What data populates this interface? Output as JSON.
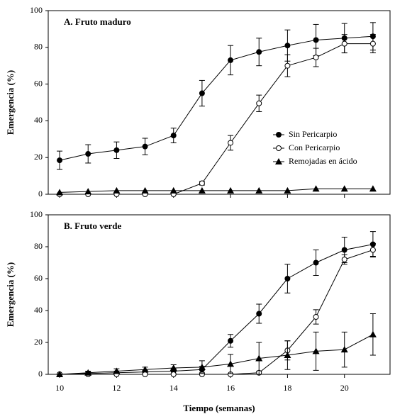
{
  "chart_data": [
    {
      "type": "line",
      "title": "A.  Fruto maduro",
      "y_label": "Emergencia (%)",
      "x": [
        10,
        11,
        12,
        13,
        14,
        15,
        16,
        17,
        18,
        19,
        20,
        21
      ],
      "xlim": [
        9.6,
        21.6
      ],
      "xticks": [
        10,
        12,
        14,
        16,
        18,
        20
      ],
      "show_xtick_labels": false,
      "ylim": [
        0,
        100
      ],
      "yticks": [
        0,
        20,
        40,
        60,
        80,
        100
      ],
      "legend": "right",
      "series": [
        {
          "name": "Sin Pericarpio",
          "color": "#000000",
          "marker": "circle-filled",
          "values": [
            18.5,
            22,
            24,
            26,
            32,
            55,
            73,
            77.5,
            81,
            84,
            85,
            86
          ],
          "errors": [
            5,
            5,
            4.5,
            4.5,
            4,
            7,
            8,
            7.5,
            8.5,
            8.5,
            8,
            7.5
          ]
        },
        {
          "name": "Con Pericarpio",
          "color": "#000000",
          "marker": "circle-open",
          "values": [
            0,
            0,
            0,
            0,
            0,
            6,
            28,
            49.5,
            70,
            74.5,
            82,
            82
          ],
          "errors": [
            0,
            0,
            0,
            0,
            0,
            1,
            4,
            4.5,
            6,
            5,
            5,
            5
          ]
        },
        {
          "name": "Remojadas en ácido",
          "color": "#000000",
          "marker": "triangle",
          "values": [
            1,
            1.5,
            2,
            2,
            2,
            2,
            2,
            2,
            2,
            3,
            3,
            3
          ],
          "errors": [
            0,
            0,
            0,
            0,
            0,
            0,
            0,
            0,
            0,
            0,
            0,
            0
          ]
        }
      ]
    },
    {
      "type": "line",
      "title": "B.  Fruto verde",
      "y_label": "Emergencia (%)",
      "x_label": "Tiempo (semanas)",
      "x": [
        10,
        11,
        12,
        13,
        14,
        15,
        16,
        17,
        18,
        19,
        20,
        21
      ],
      "xlim": [
        9.6,
        21.6
      ],
      "xticks": [
        10,
        12,
        14,
        16,
        18,
        20
      ],
      "show_xtick_labels": true,
      "ylim": [
        0,
        100
      ],
      "yticks": [
        0,
        20,
        40,
        60,
        80,
        100
      ],
      "series": [
        {
          "color": "#000000",
          "marker": "circle-filled",
          "values": [
            0,
            0.5,
            1,
            1.5,
            2,
            3,
            21,
            38,
            60,
            70,
            78,
            81.5
          ],
          "errors": [
            0,
            1,
            1,
            1,
            1.5,
            2,
            4,
            6,
            9,
            8,
            8,
            8
          ]
        },
        {
          "color": "#000000",
          "marker": "circle-open",
          "values": [
            0,
            0,
            0,
            0,
            0,
            0,
            0,
            1,
            15,
            36,
            72,
            78
          ],
          "errors": [
            0,
            0,
            0,
            0,
            0,
            0,
            0,
            1,
            6,
            4.5,
            3,
            4
          ]
        },
        {
          "color": "#000000",
          "marker": "triangle",
          "values": [
            0,
            1,
            2,
            3,
            4,
            4.5,
            6.5,
            10,
            12,
            14.5,
            15.5,
            25
          ],
          "errors": [
            0,
            1,
            1.5,
            1.5,
            2,
            4,
            6,
            10,
            9,
            12,
            11,
            13
          ]
        }
      ]
    }
  ]
}
